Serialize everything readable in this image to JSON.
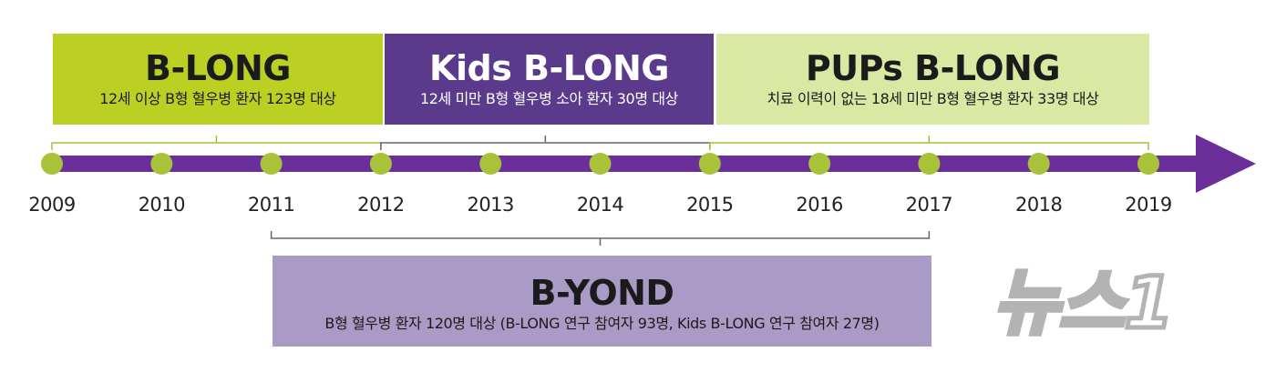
{
  "colors": {
    "arrow": "#6a2f9a",
    "dot": "#a8c23a",
    "bracket": "#666666",
    "bracket_green": "#a7bd3a",
    "watermark": "#b3b3b3"
  },
  "timeline": {
    "years": [
      "2009",
      "2010",
      "2011",
      "2012",
      "2013",
      "2014",
      "2015",
      "2016",
      "2017",
      "2018",
      "2019"
    ]
  },
  "studies": {
    "b_long": {
      "title": "B-LONG",
      "subtitle": "12세 이상 B형 혈우병 환자 123명 대상",
      "start_year": "2009",
      "end_year": "2012"
    },
    "kids_b_long": {
      "title": "Kids B-LONG",
      "subtitle": "12세 미만 B형 혈우병 소아 환자 30명 대상",
      "start_year": "2012",
      "end_year": "2015"
    },
    "pups_b_long": {
      "title": "PUPs B-LONG",
      "subtitle": "치료 이력이 없는 18세 미만 B형 혈우병 환자 33명 대상",
      "start_year": "2015",
      "end_year": "2019"
    },
    "b_yond": {
      "title": "B-YOND",
      "subtitle": "B형 혈우병 환자 120명 대상 (B-LONG 연구 참여자 93명, Kids B-LONG 연구 참여자 27명)",
      "start_year": "2011",
      "end_year": "2017"
    }
  },
  "watermark": {
    "text": "뉴스1",
    "icon": "news1-logo"
  }
}
